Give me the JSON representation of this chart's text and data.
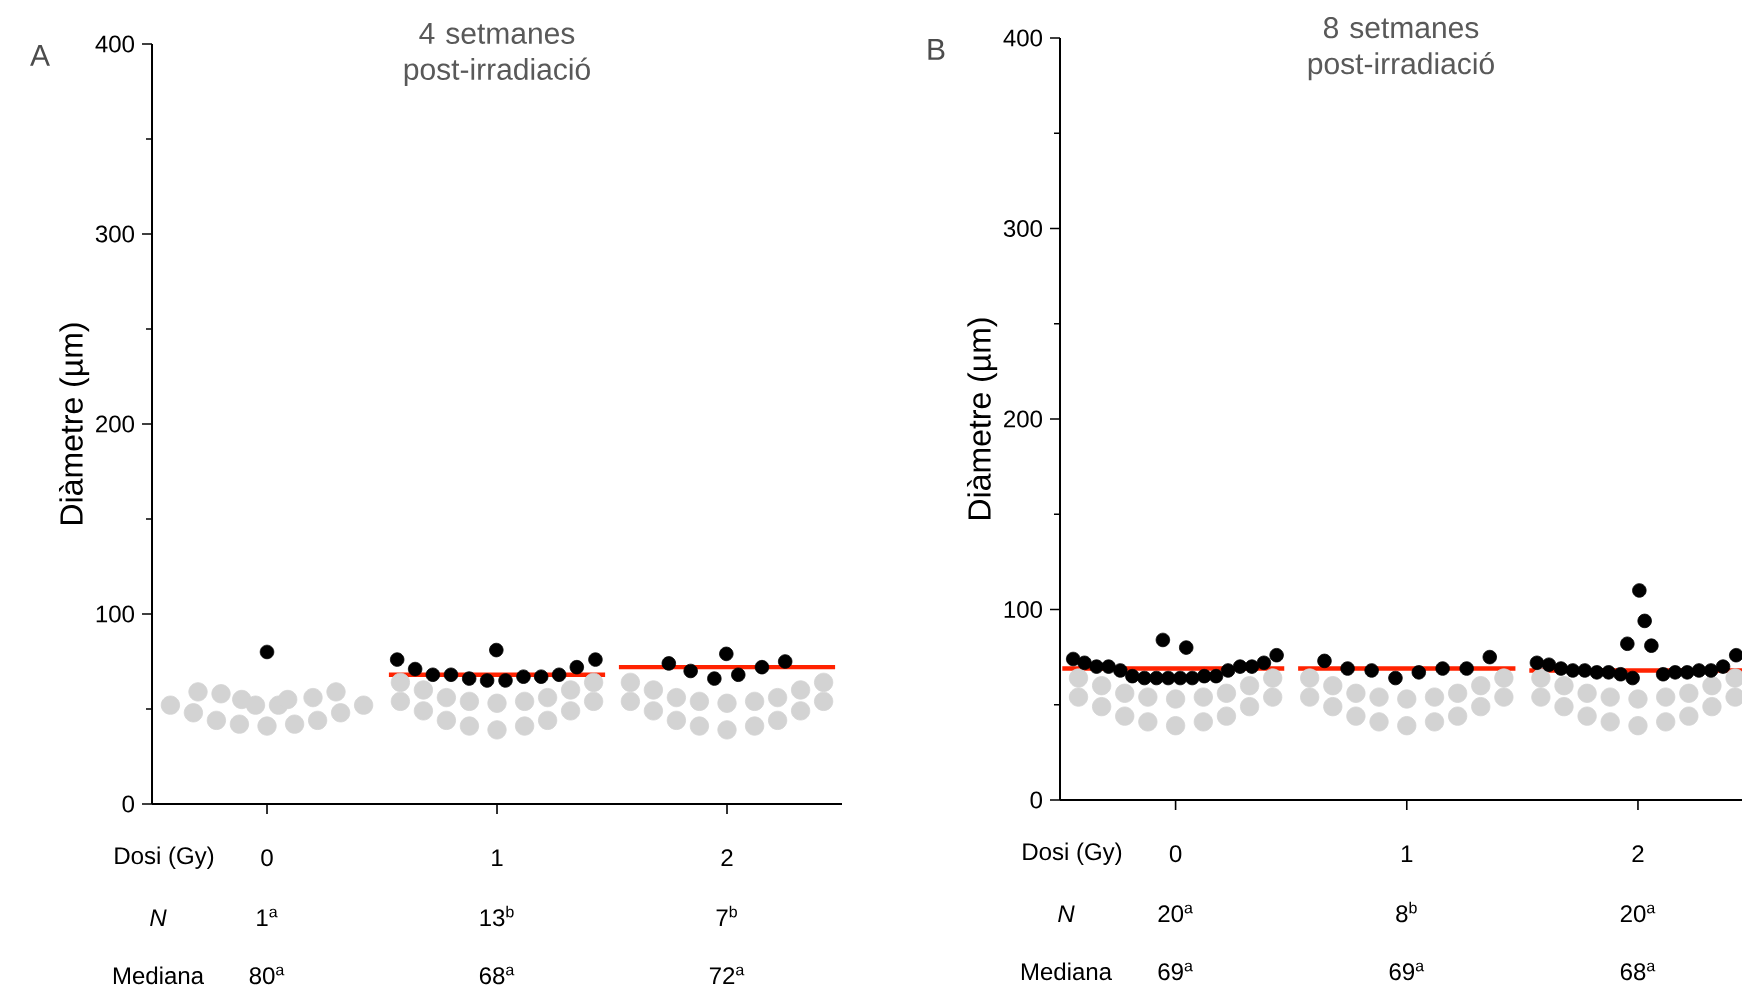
{
  "chart_data": [
    {
      "type": "scatter",
      "title": "4 setmanes post-irradiació",
      "xlabel": "Dosi (Gy)",
      "ylabel": "Diàmetre (µm)",
      "xlim": [
        -0.5,
        2.5
      ],
      "ylim": [
        0,
        400
      ],
      "xticks": [
        0,
        1,
        2
      ],
      "yticks": [
        0,
        {
          "value": 50,
          "label": null
        },
        100,
        {
          "value": 150,
          "label": null
        },
        200,
        {
          "value": 250,
          "label": null
        },
        300,
        {
          "value": 350,
          "label": null
        },
        400
      ],
      "annotations": [
        "A",
        "N",
        "1$^{a}$",
        "13$^{b}$",
        "7$^{b}$",
        "Mediana",
        "80$^{a}$",
        "68$^{a}$",
        "72$^{a}$"
      ],
      "series": [
        {
          "marker": "circle",
          "color": "#d3d3d3",
          "x": [
            -0.42,
            -0.32,
            -0.22,
            -0.12,
            0,
            0.12,
            0.22,
            0.32,
            0.42,
            -0.3,
            -0.2,
            -0.11,
            -0.05,
            0.05,
            0.09,
            0.2,
            0.3,
            0.58,
            0.68,
            0.78,
            0.88,
            1,
            1.12,
            1.22,
            1.32,
            1.42,
            0.58,
            0.68,
            0.78,
            0.88,
            1,
            1.12,
            1.22,
            1.32,
            1.42,
            1.58,
            1.68,
            1.78,
            1.88,
            2,
            2.12,
            2.22,
            2.32,
            2.42,
            1.58,
            1.68,
            1.78,
            1.88,
            2,
            2.12,
            2.22,
            2.32,
            2.42
          ],
          "values": [
            52,
            48,
            44,
            42,
            41,
            42,
            44,
            48,
            52,
            59,
            58,
            55,
            52,
            52,
            55,
            56,
            59,
            54,
            49,
            44,
            41,
            39,
            41,
            44,
            49,
            54,
            64,
            60,
            56,
            54,
            53,
            54,
            56,
            60,
            64,
            54,
            49,
            44,
            41,
            39,
            41,
            44,
            49,
            54,
            64,
            60,
            56,
            54,
            53,
            54,
            56,
            60,
            64
          ]
        },
        {
          "type": "line",
          "marker": "none",
          "color": "#ff2200",
          "x": [
            0.53,
            1.47,
            1.5,
            1.53,
            2.47
          ],
          "values": [
            68,
            68,
            null,
            72,
            72
          ]
        },
        {
          "marker": "circle",
          "color": "#000000",
          "x": [
            0,
            0.566,
            0.644,
            0.721,
            0.8,
            0.879,
            0.957,
            0.997,
            1.037,
            1.115,
            1.192,
            1.27,
            1.347,
            1.428,
            1.747,
            1.842,
            1.945,
            1.997,
            2.049,
            2.152,
            2.253
          ],
          "values": [
            80,
            76,
            71,
            68,
            68,
            66,
            65,
            81,
            65,
            67,
            67,
            68,
            72,
            76,
            74,
            70,
            66,
            79,
            68,
            72,
            75
          ]
        }
      ]
    },
    {
      "type": "scatter",
      "title": "8 setmanes post-irradiació",
      "xlabel": "Dosi (Gy)",
      "ylabel": "Diàmetre (µm)",
      "xlim": [
        -0.5,
        2.45
      ],
      "ylim": [
        0,
        400
      ],
      "xticks": [
        0,
        1,
        2
      ],
      "yticks": [
        0,
        {
          "value": 50,
          "label": null
        },
        100,
        {
          "value": 150,
          "label": null
        },
        200,
        {
          "value": 250,
          "label": null
        },
        300,
        {
          "value": 350,
          "label": null
        },
        400
      ],
      "annotations": [
        "B",
        "N",
        "20$^{a}$",
        "8$^{b}$",
        "20$^{a}$",
        "Mediana",
        "69$^{a}$",
        "69$^{a}$",
        "68$^{a}$"
      ],
      "series": [
        {
          "marker": "circle",
          "color": "#d3d3d3",
          "x": [
            -0.42,
            -0.32,
            -0.22,
            -0.12,
            0,
            0.12,
            0.22,
            0.32,
            0.42,
            -0.42,
            -0.32,
            -0.22,
            -0.12,
            0,
            0.12,
            0.22,
            0.32,
            0.42,
            0.58,
            0.68,
            0.78,
            0.88,
            1,
            1.12,
            1.22,
            1.32,
            1.42,
            0.58,
            0.68,
            0.78,
            0.88,
            1,
            1.12,
            1.22,
            1.32,
            1.42,
            1.58,
            1.68,
            1.78,
            1.88,
            2,
            2.12,
            2.22,
            2.32,
            2.42,
            1.58,
            1.68,
            1.78,
            1.88,
            2,
            2.12,
            2.22,
            2.32,
            2.42
          ],
          "values": [
            54,
            49,
            44,
            41,
            39,
            41,
            44,
            49,
            54,
            64,
            60,
            56,
            54,
            53,
            54,
            56,
            60,
            64,
            54,
            49,
            44,
            41,
            39,
            41,
            44,
            49,
            54,
            64,
            60,
            56,
            54,
            53,
            54,
            56,
            60,
            64,
            54,
            49,
            44,
            41,
            39,
            41,
            44,
            49,
            54,
            64,
            60,
            56,
            54,
            53,
            54,
            56,
            60,
            64
          ]
        },
        {
          "type": "line",
          "marker": "none",
          "color": "#ff2200",
          "x": [
            -0.49,
            0.47,
            0.5,
            0.53,
            1.47,
            1.5,
            1.53,
            2.45
          ],
          "values": [
            69,
            69,
            null,
            69,
            69,
            null,
            68,
            68
          ]
        },
        {
          "marker": "circle",
          "color": "#000000",
          "x": [
            -0.443,
            -0.394,
            -0.342,
            -0.29,
            -0.239,
            -0.187,
            -0.135,
            -0.083,
            -0.055,
            -0.032,
            0.02,
            0.046,
            0.072,
            0.124,
            0.175,
            0.227,
            0.279,
            0.33,
            0.382,
            0.437,
            0.644,
            0.744,
            0.848,
            0.951,
            1.052,
            1.155,
            1.259,
            1.359,
            1.563,
            1.615,
            1.667,
            1.718,
            1.77,
            1.822,
            1.873,
            1.925,
            1.954,
            1.977,
            2.006,
            2.029,
            2.058,
            2.109,
            2.161,
            2.213,
            2.264,
            2.316,
            2.368,
            2.425
          ],
          "values": [
            74,
            72,
            70,
            70,
            68,
            65,
            64,
            64,
            84,
            64,
            64,
            80,
            64,
            65,
            65,
            68,
            70,
            70,
            72,
            76,
            73,
            69,
            68,
            64,
            67,
            69,
            69,
            75,
            72,
            71,
            69,
            68,
            68,
            67,
            67,
            66,
            82,
            64,
            110,
            94,
            81,
            66,
            67,
            67,
            68,
            68,
            70,
            76
          ]
        }
      ]
    }
  ]
}
